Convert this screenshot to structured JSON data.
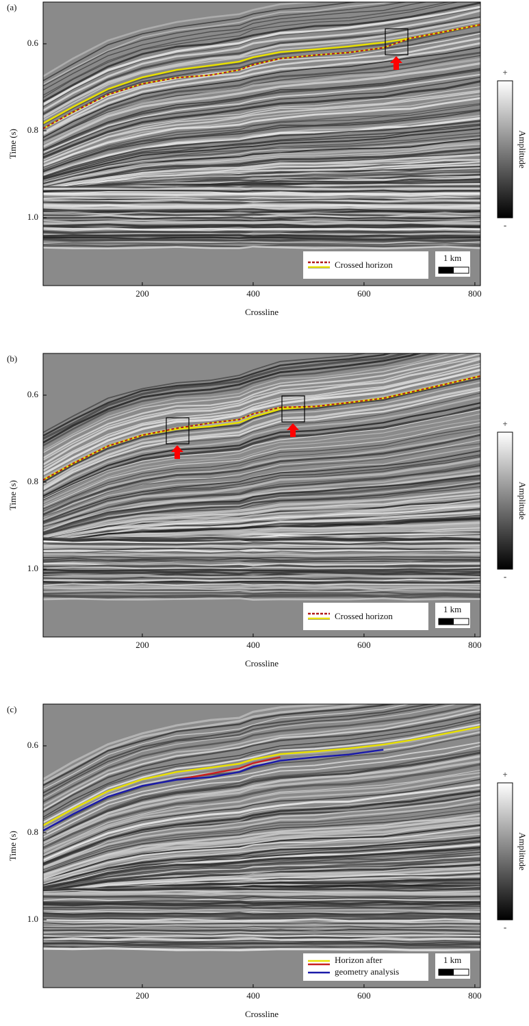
{
  "chart_data": [
    {
      "type": "line",
      "panel_label": "(a)",
      "xlabel": "Crossline",
      "ylabel": "Time (s)",
      "xlim": [
        21,
        810
      ],
      "ylim": [
        0.504,
        1.156
      ],
      "xticks": [
        200,
        400,
        600,
        800
      ],
      "yticks": [
        0.6,
        0.8,
        {
          "value": 1,
          "label": "1.0"
        }
      ],
      "x": [
        21,
        75,
        138,
        200,
        262,
        323,
        375,
        400,
        449,
        511,
        573,
        635,
        684,
        746,
        810
      ],
      "series": [
        {
          "color": "#e8e000",
          "values": [
            0.783,
            0.745,
            0.704,
            0.677,
            0.66,
            0.65,
            0.641,
            0.631,
            0.619,
            0.613,
            0.606,
            0.597,
            0.587,
            0.572,
            0.556
          ]
        },
        {
          "color": "#b01818",
          "dashed": true,
          "values": [
            0.795,
            0.757,
            0.717,
            0.692,
            0.678,
            0.672,
            0.66,
            0.648,
            0.634,
            0.626,
            0.62,
            0.609,
            0.587,
            0.572,
            0.556
          ]
        }
      ],
      "legend_label": "Crossed horizon",
      "scale_bar": "1 km",
      "colorbar": {
        "label": "Amplitude",
        "max_label": "+",
        "min_label": "-"
      }
    },
    {
      "type": "line",
      "panel_label": "(b)",
      "xlabel": "Crossline",
      "ylabel": "Time (s)",
      "xlim": [
        21,
        810
      ],
      "ylim": [
        0.504,
        1.156
      ],
      "xticks": [
        200,
        400,
        600,
        800
      ],
      "yticks": [
        0.6,
        0.8,
        {
          "value": 1,
          "label": "1.0"
        }
      ],
      "x": [
        21,
        75,
        138,
        200,
        262,
        323,
        375,
        400,
        449,
        511,
        573,
        635,
        684,
        746,
        810
      ],
      "series": [
        {
          "color": "#e8e000",
          "values": [
            0.795,
            0.757,
            0.717,
            0.692,
            0.678,
            0.672,
            0.663,
            0.65,
            0.632,
            0.626,
            0.617,
            0.607,
            0.593,
            0.575,
            0.556
          ]
        },
        {
          "color": "#b01818",
          "dashed": true,
          "values": [
            0.795,
            0.757,
            0.717,
            0.692,
            0.676,
            0.664,
            0.656,
            0.643,
            0.628,
            0.626,
            0.617,
            0.607,
            0.593,
            0.575,
            0.556
          ]
        }
      ],
      "legend_label": "Crossed horizon",
      "scale_bar": "1 km",
      "colorbar": {
        "label": "Amplitude",
        "max_label": "+",
        "min_label": "-"
      }
    },
    {
      "type": "line",
      "panel_label": "(c)",
      "xlabel": "Crossline",
      "ylabel": "Time (s)",
      "xlim": [
        21,
        810
      ],
      "ylim": [
        0.504,
        1.156
      ],
      "xticks": [
        200,
        400,
        600,
        800
      ],
      "yticks": [
        0.6,
        0.8,
        {
          "value": 1,
          "label": "1.0"
        }
      ],
      "x": [
        21,
        75,
        138,
        200,
        262,
        323,
        375,
        400,
        449,
        511,
        573,
        635,
        684,
        746,
        810
      ],
      "series": [
        {
          "name": "Horizon after",
          "color": "#e8e000",
          "values": [
            0.783,
            0.745,
            0.704,
            0.677,
            0.66,
            0.65,
            0.641,
            0.631,
            0.619,
            0.613,
            0.606,
            0.597,
            0.587,
            0.572,
            0.556
          ]
        },
        {
          "color": "#c82020",
          "values": [
            null,
            null,
            null,
            null,
            0.678,
            0.664,
            0.652,
            0.64,
            0.626,
            null,
            null,
            null,
            null,
            null,
            null
          ]
        },
        {
          "name": "geometry analysis",
          "color": "#1a1aa8",
          "values": [
            0.795,
            0.757,
            0.717,
            0.692,
            0.678,
            0.672,
            0.66,
            0.648,
            0.634,
            0.626,
            0.62,
            0.609,
            null,
            null,
            null
          ]
        }
      ],
      "scale_bar": "1 km",
      "colorbar": {
        "label": "Amplitude",
        "max_label": "+",
        "min_label": "-"
      }
    }
  ]
}
